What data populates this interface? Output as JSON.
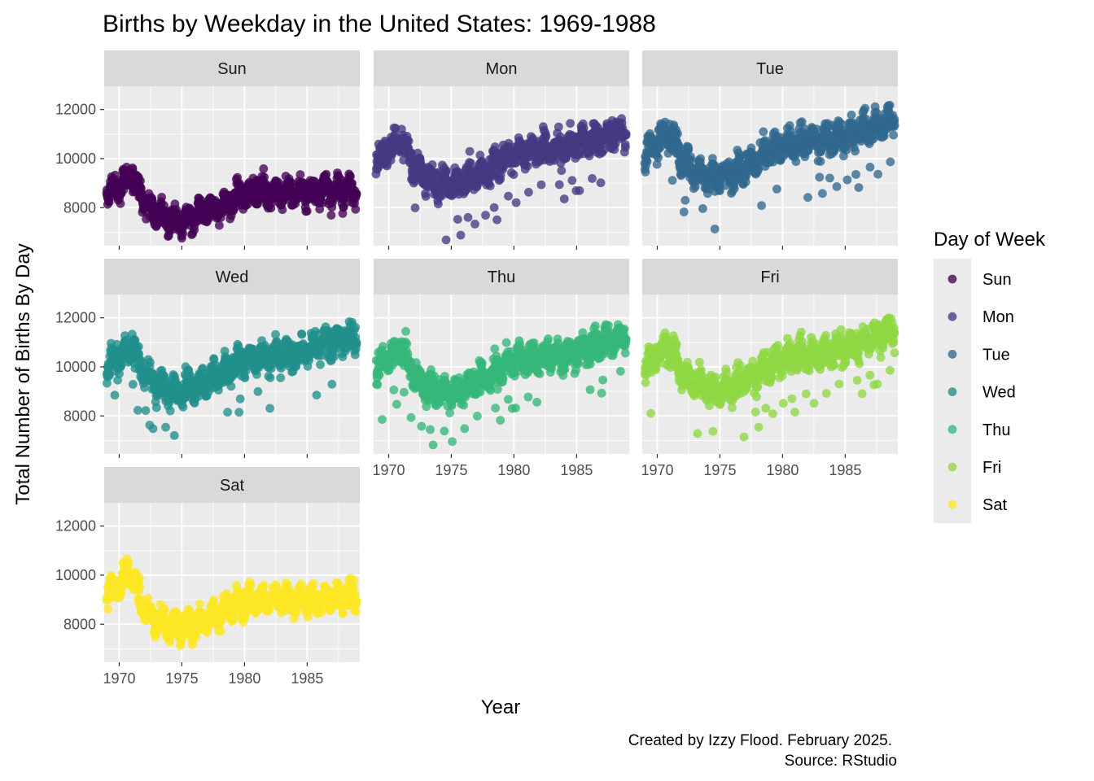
{
  "chart_data": {
    "type": "scatter",
    "title": "Births by Weekday in the United States: 1969-1988",
    "xlabel": "Year",
    "ylabel": "Total Number of Births By Day",
    "xlim": [
      1968.8,
      1989.2
    ],
    "ylim": [
      6450,
      12950
    ],
    "x_ticks": [
      1970,
      1975,
      1980,
      1985
    ],
    "x_tick_labels": [
      "1970",
      "1975",
      "1980",
      "1985"
    ],
    "y_ticks": [
      8000,
      10000,
      12000
    ],
    "y_tick_labels": [
      "8000",
      "10000",
      "12000"
    ],
    "grid": true,
    "facet_layout": "3x3 wrap, free x labels on bottom row per column",
    "legend": {
      "title": "Day of Week",
      "placement": "right",
      "entries": [
        "Sun",
        "Mon",
        "Tue",
        "Wed",
        "Thu",
        "Fri",
        "Sat"
      ]
    },
    "caption": [
      "Created by Izzy Flood. February 2025.",
      "Source: RStudio"
    ],
    "series": [
      {
        "name": "Sun",
        "color": "#440154",
        "x": [
          1969.0,
          1970.0,
          1971.0,
          1972.0,
          1973.0,
          1974.0,
          1975.0,
          1976.0,
          1977.0,
          1978.0,
          1979.0,
          1980.0,
          1981.0,
          1982.0,
          1983.0,
          1984.0,
          1985.0,
          1986.0,
          1987.0,
          1988.0,
          1988.9
        ],
        "y": [
          8500,
          8900,
          9300,
          8300,
          7800,
          7500,
          7450,
          7600,
          7800,
          8000,
          8250,
          8550,
          8700,
          8650,
          8600,
          8600,
          8650,
          8700,
          8650,
          8700,
          8750
        ]
      },
      {
        "name": "Mon",
        "color": "#443A83",
        "x": [
          1969.0,
          1970.0,
          1971.0,
          1972.0,
          1973.0,
          1974.0,
          1975.0,
          1976.0,
          1977.0,
          1978.0,
          1979.0,
          1980.0,
          1981.0,
          1982.0,
          1983.0,
          1984.0,
          1985.0,
          1986.0,
          1987.0,
          1988.0,
          1988.9
        ],
        "y": [
          9900,
          10400,
          10700,
          9700,
          9200,
          9000,
          8950,
          9100,
          9350,
          9600,
          9900,
          10200,
          10300,
          10350,
          10400,
          10450,
          10600,
          10750,
          10850,
          11000,
          11100
        ]
      },
      {
        "name": "Tue",
        "color": "#31688E",
        "x": [
          1969.0,
          1970.0,
          1971.0,
          1972.0,
          1973.0,
          1974.0,
          1975.0,
          1976.0,
          1977.0,
          1978.0,
          1979.0,
          1980.0,
          1981.0,
          1982.0,
          1983.0,
          1984.0,
          1985.0,
          1986.0,
          1987.0,
          1988.0,
          1988.9
        ],
        "y": [
          10200,
          10700,
          11100,
          9900,
          9500,
          9300,
          9250,
          9450,
          9700,
          9950,
          10250,
          10550,
          10650,
          10700,
          10750,
          10800,
          10950,
          11100,
          11250,
          11450,
          11600
        ]
      },
      {
        "name": "Wed",
        "color": "#21908C",
        "x": [
          1969.0,
          1970.0,
          1971.0,
          1972.0,
          1973.0,
          1974.0,
          1975.0,
          1976.0,
          1977.0,
          1978.0,
          1979.0,
          1980.0,
          1981.0,
          1982.0,
          1983.0,
          1984.0,
          1985.0,
          1986.0,
          1987.0,
          1988.0,
          1988.9
        ],
        "y": [
          9950,
          10450,
          10900,
          9700,
          9300,
          9050,
          9000,
          9200,
          9450,
          9700,
          10000,
          10300,
          10400,
          10450,
          10500,
          10550,
          10700,
          10850,
          10950,
          11150,
          11300
        ]
      },
      {
        "name": "Thu",
        "color": "#35B779",
        "x": [
          1969.0,
          1970.0,
          1971.0,
          1972.0,
          1973.0,
          1974.0,
          1975.0,
          1976.0,
          1977.0,
          1978.0,
          1979.0,
          1980.0,
          1981.0,
          1982.0,
          1983.0,
          1984.0,
          1985.0,
          1986.0,
          1987.0,
          1988.0,
          1988.9
        ],
        "y": [
          9900,
          10400,
          10800,
          9700,
          9250,
          9000,
          8950,
          9150,
          9400,
          9650,
          9950,
          10250,
          10350,
          10400,
          10450,
          10500,
          10650,
          10800,
          10950,
          11150,
          11300
        ]
      },
      {
        "name": "Fri",
        "color": "#8FD744",
        "x": [
          1969.0,
          1970.0,
          1971.0,
          1972.0,
          1973.0,
          1974.0,
          1975.0,
          1976.0,
          1977.0,
          1978.0,
          1979.0,
          1980.0,
          1981.0,
          1982.0,
          1983.0,
          1984.0,
          1985.0,
          1986.0,
          1987.0,
          1988.0,
          1988.9
        ],
        "y": [
          10000,
          10500,
          10900,
          9750,
          9300,
          9050,
          9000,
          9200,
          9450,
          9700,
          10000,
          10350,
          10450,
          10500,
          10550,
          10650,
          10800,
          10950,
          11100,
          11350,
          11500
        ]
      },
      {
        "name": "Sat",
        "color": "#FDE725",
        "x": [
          1969.0,
          1970.0,
          1971.0,
          1972.0,
          1973.0,
          1974.0,
          1975.0,
          1976.0,
          1977.0,
          1978.0,
          1979.0,
          1980.0,
          1981.0,
          1982.0,
          1983.0,
          1984.0,
          1985.0,
          1986.0,
          1987.0,
          1988.0,
          1988.9
        ],
        "y": [
          9200,
          9700,
          10100,
          8600,
          8100,
          7900,
          7850,
          8000,
          8200,
          8450,
          8700,
          8950,
          9000,
          9000,
          9000,
          8950,
          9000,
          9050,
          9050,
          9100,
          9150
        ]
      }
    ]
  }
}
